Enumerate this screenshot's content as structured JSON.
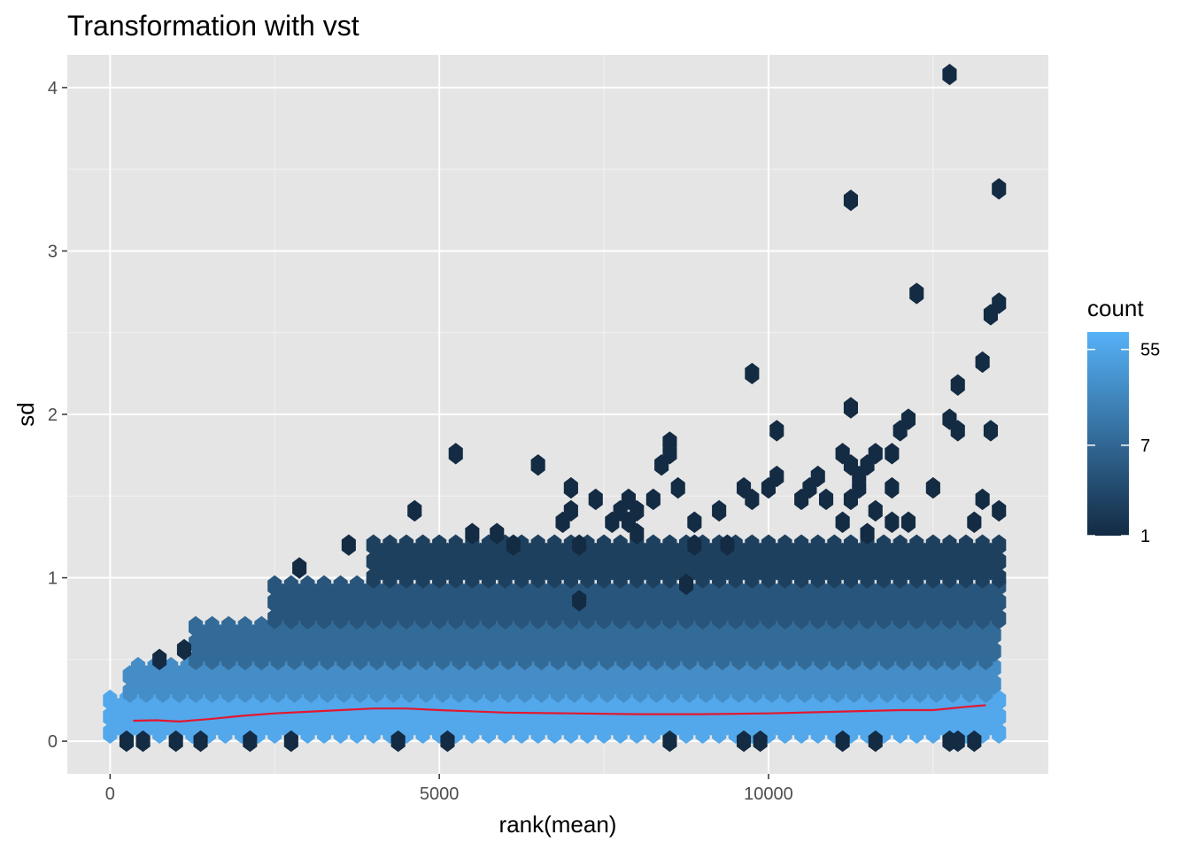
{
  "chart_data": {
    "type": "hexbin",
    "title": "Transformation with vst",
    "xlabel": "rank(mean)",
    "ylabel": "sd",
    "xlim": [
      -650,
      14250
    ],
    "ylim": [
      -0.2,
      4.2
    ],
    "x_ticks": [
      0,
      5000,
      10000
    ],
    "x_tick_labels": [
      "0",
      "5000",
      "10000"
    ],
    "y_ticks": [
      0,
      1,
      2,
      3,
      4
    ],
    "y_tick_labels": [
      "0",
      "1",
      "2",
      "3",
      "4"
    ],
    "grid": true,
    "background": "#e5e5e5",
    "colors": {
      "low": "#132b43",
      "high": "#56b1f7",
      "trend": "#e3172f"
    },
    "legend": {
      "title": "count",
      "position": "right",
      "scale": "log",
      "min": 1,
      "max": 80,
      "breaks": [
        1,
        7,
        55
      ],
      "break_labels": [
        "1",
        "7",
        "55"
      ]
    },
    "hex_size": {
      "dx": 250,
      "dy": 0.1
    },
    "bands": [
      {
        "x_range": [
          0,
          13500
        ],
        "sd_range": [
          0.05,
          0.3
        ],
        "count": 60
      },
      {
        "x_range": [
          300,
          13500
        ],
        "sd_range": [
          0.3,
          0.5
        ],
        "count": 25
      },
      {
        "x_range": [
          1300,
          13500
        ],
        "sd_range": [
          0.5,
          0.75
        ],
        "count": 8
      },
      {
        "x_range": [
          2500,
          13500
        ],
        "sd_range": [
          0.75,
          1.0
        ],
        "count": 4
      },
      {
        "x_range": [
          4000,
          13500
        ],
        "sd_range": [
          1.0,
          1.25
        ],
        "count": 2
      }
    ],
    "outlier_points": [
      {
        "x": 12750,
        "y": 4.08
      },
      {
        "x": 11250,
        "y": 3.31
      },
      {
        "x": 13500,
        "y": 3.38
      },
      {
        "x": 12250,
        "y": 2.74
      },
      {
        "x": 13500,
        "y": 2.68
      },
      {
        "x": 13375,
        "y": 2.61
      },
      {
        "x": 9750,
        "y": 2.25
      },
      {
        "x": 13250,
        "y": 2.32
      },
      {
        "x": 12875,
        "y": 2.18
      },
      {
        "x": 11250,
        "y": 2.04
      },
      {
        "x": 10125,
        "y": 1.9
      },
      {
        "x": 12750,
        "y": 1.97
      },
      {
        "x": 12125,
        "y": 1.97
      },
      {
        "x": 12000,
        "y": 1.9
      },
      {
        "x": 12875,
        "y": 1.9
      },
      {
        "x": 13375,
        "y": 1.9
      },
      {
        "x": 5250,
        "y": 1.76
      },
      {
        "x": 8500,
        "y": 1.83
      },
      {
        "x": 6500,
        "y": 1.69
      },
      {
        "x": 8500,
        "y": 1.76
      },
      {
        "x": 8375,
        "y": 1.69
      },
      {
        "x": 11125,
        "y": 1.76
      },
      {
        "x": 11250,
        "y": 1.69
      },
      {
        "x": 11625,
        "y": 1.76
      },
      {
        "x": 11875,
        "y": 1.76
      },
      {
        "x": 11500,
        "y": 1.69
      },
      {
        "x": 10125,
        "y": 1.62
      },
      {
        "x": 10750,
        "y": 1.62
      },
      {
        "x": 11375,
        "y": 1.62
      },
      {
        "x": 7000,
        "y": 1.55
      },
      {
        "x": 8625,
        "y": 1.55
      },
      {
        "x": 9625,
        "y": 1.55
      },
      {
        "x": 10000,
        "y": 1.55
      },
      {
        "x": 10625,
        "y": 1.55
      },
      {
        "x": 11375,
        "y": 1.55
      },
      {
        "x": 11875,
        "y": 1.55
      },
      {
        "x": 12500,
        "y": 1.55
      },
      {
        "x": 7375,
        "y": 1.48
      },
      {
        "x": 7875,
        "y": 1.48
      },
      {
        "x": 8250,
        "y": 1.48
      },
      {
        "x": 9750,
        "y": 1.48
      },
      {
        "x": 10500,
        "y": 1.48
      },
      {
        "x": 10875,
        "y": 1.48
      },
      {
        "x": 11250,
        "y": 1.48
      },
      {
        "x": 13250,
        "y": 1.48
      },
      {
        "x": 4625,
        "y": 1.41
      },
      {
        "x": 7000,
        "y": 1.41
      },
      {
        "x": 7750,
        "y": 1.41
      },
      {
        "x": 8000,
        "y": 1.41
      },
      {
        "x": 9250,
        "y": 1.41
      },
      {
        "x": 11625,
        "y": 1.41
      },
      {
        "x": 13500,
        "y": 1.41
      },
      {
        "x": 6875,
        "y": 1.34
      },
      {
        "x": 7625,
        "y": 1.34
      },
      {
        "x": 7875,
        "y": 1.34
      },
      {
        "x": 8875,
        "y": 1.34
      },
      {
        "x": 11125,
        "y": 1.34
      },
      {
        "x": 11875,
        "y": 1.34
      },
      {
        "x": 12125,
        "y": 1.34
      },
      {
        "x": 13125,
        "y": 1.34
      },
      {
        "x": 5500,
        "y": 1.27
      },
      {
        "x": 5875,
        "y": 1.27
      },
      {
        "x": 8000,
        "y": 1.27
      },
      {
        "x": 11500,
        "y": 1.27
      },
      {
        "x": 3625,
        "y": 1.2
      },
      {
        "x": 6125,
        "y": 1.2
      },
      {
        "x": 7125,
        "y": 1.2
      },
      {
        "x": 8875,
        "y": 1.2
      },
      {
        "x": 9375,
        "y": 1.2
      },
      {
        "x": 2875,
        "y": 1.06
      },
      {
        "x": 9750,
        "y": 1.0
      },
      {
        "x": 8750,
        "y": 0.96
      },
      {
        "x": 7125,
        "y": 0.86
      },
      {
        "x": 1125,
        "y": 0.56
      },
      {
        "x": 750,
        "y": 0.5
      },
      {
        "x": 250,
        "y": 0.0
      },
      {
        "x": 500,
        "y": 0.0
      },
      {
        "x": 1000,
        "y": 0.0
      },
      {
        "x": 1375,
        "y": 0.0
      },
      {
        "x": 2125,
        "y": 0.0
      },
      {
        "x": 2750,
        "y": 0.0
      },
      {
        "x": 4375,
        "y": 0.0
      },
      {
        "x": 5125,
        "y": 0.0
      },
      {
        "x": 8500,
        "y": 0.0
      },
      {
        "x": 9625,
        "y": 0.0
      },
      {
        "x": 9875,
        "y": 0.0
      },
      {
        "x": 11125,
        "y": 0.0
      },
      {
        "x": 11625,
        "y": 0.0
      },
      {
        "x": 12750,
        "y": 0.0
      },
      {
        "x": 12875,
        "y": 0.0
      },
      {
        "x": 13125,
        "y": 0.0
      }
    ],
    "trend_line": {
      "x": [
        350,
        700,
        1050,
        1500,
        2000,
        2500,
        3000,
        3500,
        4000,
        4500,
        5000,
        6000,
        7000,
        8000,
        9000,
        10000,
        11000,
        12000,
        12500,
        13000,
        13300
      ],
      "y": [
        0.125,
        0.128,
        0.12,
        0.135,
        0.155,
        0.17,
        0.18,
        0.19,
        0.2,
        0.2,
        0.19,
        0.175,
        0.17,
        0.165,
        0.165,
        0.17,
        0.18,
        0.19,
        0.19,
        0.21,
        0.22
      ]
    }
  }
}
